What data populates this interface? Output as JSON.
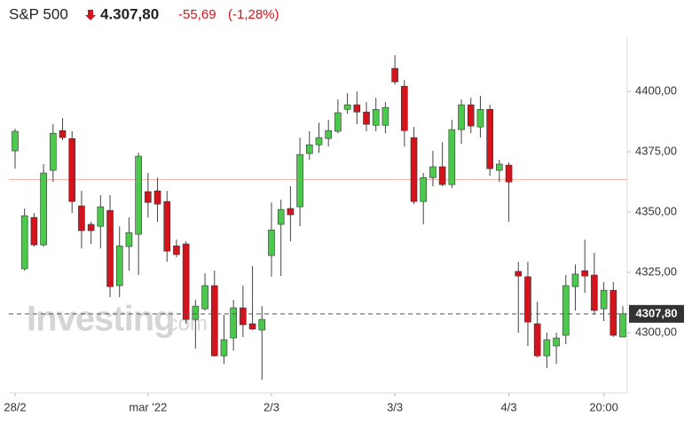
{
  "chart_data": {
    "type": "candlestick",
    "title": "S&P 500",
    "price": "4.307,80",
    "change": "-55,69",
    "change_percent": "(-1,28%)",
    "watermark": {
      "brand": "Investing",
      "suffix": ".com"
    },
    "up_color": "#4cc94c",
    "down_color": "#d3141c",
    "categories": [
      "28/2",
      null,
      null,
      null,
      null,
      null,
      null,
      null,
      null,
      null,
      null,
      null,
      null,
      null,
      "mar '22",
      null,
      null,
      null,
      null,
      null,
      null,
      null,
      null,
      null,
      null,
      null,
      null,
      "2/3",
      null,
      null,
      null,
      null,
      null,
      null,
      null,
      null,
      null,
      null,
      null,
      null,
      "3/3",
      null,
      null,
      null,
      null,
      null,
      null,
      null,
      null,
      null,
      null,
      null,
      "4/3",
      null,
      null,
      null,
      null,
      null,
      null,
      null,
      null,
      null,
      "20:00",
      null,
      null
    ],
    "open": [
      4375.4,
      4326.5,
      4347.8,
      4336.4,
      4367.3,
      4383.8,
      4380.5,
      4352.6,
      4344.9,
      4344.1,
      4350.7,
      4319.5,
      4335.7,
      4340.8,
      4358.5,
      4358.8,
      4354.4,
      4336.0,
      4336.8,
      4305.5,
      4309.9,
      4319.5,
      4290.4,
      4297.8,
      4310.3,
      4303.7,
      4301.1,
      4332.0,
      4344.9,
      4351.5,
      4352.2,
      4374.3,
      4377.9,
      4380.5,
      4383.5,
      4392.6,
      4394.5,
      4391.5,
      4386.0,
      4386.0,
      4409.6,
      4402.2,
      4380.9,
      4354.4,
      4364.3,
      4368.8,
      4361.4,
      4384.2,
      4394.5,
      4385.3,
      4392.6,
      4367.3,
      4369.5,
      4325.4,
      4323.2,
      4303.7,
      4290.4,
      4294.5,
      4298.9,
      4319.1,
      4325.7,
      4323.9,
      4309.9,
      4317.6,
      4298.2
    ],
    "high": [
      4384.6,
      4351.5,
      4349.6,
      4369.9,
      4386.4,
      4389.0,
      4383.5,
      4358.8,
      4346.0,
      4357.0,
      4357.0,
      4344.1,
      4347.8,
      4374.6,
      4366.2,
      4364.3,
      4358.8,
      4338.6,
      4337.9,
      4313.6,
      4324.6,
      4325.7,
      4307.4,
      4313.6,
      4319.5,
      4327.6,
      4311.0,
      4354.0,
      4355.1,
      4360.7,
      4380.9,
      4383.5,
      4387.1,
      4388.2,
      4396.7,
      4399.3,
      4400.0,
      4395.6,
      4397.4,
      4395.6,
      4415.1,
      4404.8,
      4385.3,
      4366.2,
      4375.4,
      4379.0,
      4388.2,
      4396.7,
      4397.4,
      4398.2,
      4394.5,
      4371.7,
      4370.6,
      4329.4,
      4329.4,
      4312.9,
      4300.0,
      4300.0,
      4323.9,
      4328.3,
      4338.6,
      4333.1,
      4321.0,
      4321.0,
      4311.0
    ],
    "low": [
      4368.0,
      4325.7,
      4335.7,
      4335.7,
      4362.5,
      4379.8,
      4349.6,
      4334.9,
      4336.8,
      4334.9,
      4314.7,
      4314.7,
      4325.7,
      4323.9,
      4347.8,
      4346.0,
      4329.4,
      4331.3,
      4303.7,
      4293.4,
      4309.2,
      4290.1,
      4287.1,
      4292.6,
      4298.2,
      4301.1,
      4280.5,
      4323.2,
      4323.5,
      4337.9,
      4344.1,
      4371.7,
      4374.6,
      4377.2,
      4382.7,
      4390.8,
      4386.4,
      4383.5,
      4383.5,
      4382.7,
      4402.9,
      4377.2,
      4353.3,
      4344.9,
      4360.7,
      4360.7,
      4359.9,
      4378.3,
      4382.7,
      4380.9,
      4365.1,
      4362.5,
      4346.0,
      4300.0,
      4294.5,
      4289.7,
      4285.3,
      4287.1,
      4295.2,
      4309.2,
      4316.5,
      4307.4,
      4304.8,
      4298.2,
      4298.2
    ],
    "close": [
      4383.5,
      4348.5,
      4336.4,
      4366.2,
      4382.7,
      4380.9,
      4354.4,
      4342.3,
      4342.3,
      4352.2,
      4319.1,
      4336.0,
      4341.5,
      4373.2,
      4354.0,
      4353.3,
      4333.8,
      4332.4,
      4305.5,
      4311.0,
      4319.5,
      4290.4,
      4297.1,
      4310.3,
      4303.3,
      4301.5,
      4305.5,
      4342.6,
      4351.1,
      4348.9,
      4373.9,
      4377.9,
      4380.9,
      4383.8,
      4391.2,
      4394.5,
      4391.5,
      4386.4,
      4392.6,
      4393.4,
      4404.0,
      4383.8,
      4354.4,
      4364.3,
      4368.8,
      4361.4,
      4384.2,
      4394.5,
      4385.7,
      4392.6,
      4368.0,
      4369.9,
      4362.5,
      4323.5,
      4304.4,
      4290.4,
      4297.1,
      4297.8,
      4319.5,
      4324.3,
      4323.5,
      4309.2,
      4317.6,
      4298.9,
      4307.8
    ],
    "ylim": [
      4275,
      4422.5
    ],
    "yticks": [
      {
        "value": 4300,
        "label": "4300,00"
      },
      {
        "value": 4325,
        "label": "4325,00"
      },
      {
        "value": 4350,
        "label": "4350,00"
      },
      {
        "value": 4375,
        "label": "4375,00"
      },
      {
        "value": 4400,
        "label": "4400,00"
      }
    ],
    "previous_close_line": {
      "value": 4363.5,
      "color": "#f0b0a0"
    },
    "last_price": {
      "value": 4307.8,
      "label": "4307,80"
    }
  }
}
